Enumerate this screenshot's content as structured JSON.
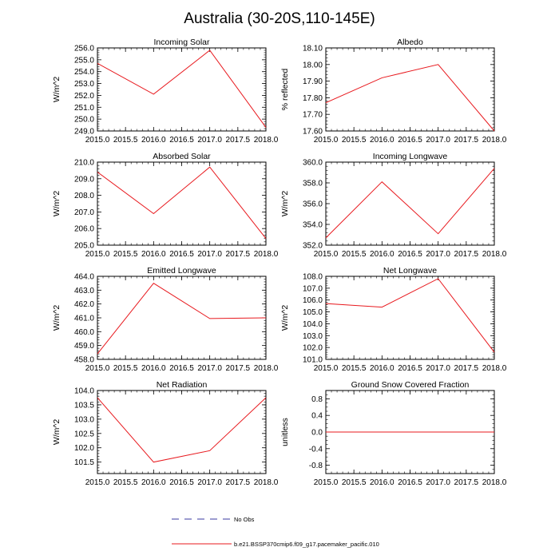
{
  "title": "Australia (30-20S,110-145E)",
  "chart_data": [
    {
      "type": "line",
      "title": "Incoming Solar",
      "ylabel": "W/m^2",
      "x": [
        2015,
        2016,
        2017,
        2018
      ],
      "xticks": [
        "2015.0",
        "2015.5",
        "2016.0",
        "2016.5",
        "2017.0",
        "2017.5",
        "2018.0"
      ],
      "xlim": [
        2015,
        2018
      ],
      "ylim": [
        249,
        256
      ],
      "yticks": [
        "249.0",
        "250.0",
        "251.0",
        "252.0",
        "253.0",
        "254.0",
        "255.0",
        "256.0"
      ],
      "yminor": 0.2,
      "series": [
        {
          "values": [
            254.7,
            252.1,
            255.8,
            249.3
          ]
        }
      ]
    },
    {
      "type": "line",
      "title": "Albedo",
      "ylabel": "% reflected",
      "x": [
        2015,
        2016,
        2017,
        2018
      ],
      "xticks": [
        "2015.0",
        "2015.5",
        "2016.0",
        "2016.5",
        "2017.0",
        "2017.5",
        "2018.0"
      ],
      "xlim": [
        2015,
        2018
      ],
      "ylim": [
        17.6,
        18.1
      ],
      "yticks": [
        "17.60",
        "17.70",
        "17.80",
        "17.90",
        "18.00",
        "18.10"
      ],
      "yminor": 0.02,
      "series": [
        {
          "values": [
            17.77,
            17.92,
            18.0,
            17.6
          ]
        }
      ]
    },
    {
      "type": "line",
      "title": "Absorbed Solar",
      "ylabel": "W/m^2",
      "x": [
        2015,
        2016,
        2017,
        2018
      ],
      "xticks": [
        "2015.0",
        "2015.5",
        "2016.0",
        "2016.5",
        "2017.0",
        "2017.5",
        "2018.0"
      ],
      "xlim": [
        2015,
        2018
      ],
      "ylim": [
        205,
        210
      ],
      "yticks": [
        "205.0",
        "206.0",
        "207.0",
        "208.0",
        "209.0",
        "210.0"
      ],
      "yminor": 0.2,
      "series": [
        {
          "values": [
            209.4,
            206.9,
            209.7,
            205.4
          ]
        }
      ]
    },
    {
      "type": "line",
      "title": "Incoming Longwave",
      "ylabel": "W/m^2",
      "x": [
        2015,
        2016,
        2017,
        2018
      ],
      "xticks": [
        "2015.0",
        "2015.5",
        "2016.0",
        "2016.5",
        "2017.0",
        "2017.5",
        "2018.0"
      ],
      "xlim": [
        2015,
        2018
      ],
      "ylim": [
        352,
        360
      ],
      "yticks": [
        "352.0",
        "354.0",
        "356.0",
        "358.0",
        "360.0"
      ],
      "yminor": 0.4,
      "series": [
        {
          "values": [
            352.7,
            358.1,
            353.1,
            359.4
          ]
        }
      ]
    },
    {
      "type": "line",
      "title": "Emitted Longwave",
      "ylabel": "W/m^2",
      "x": [
        2015,
        2016,
        2017,
        2018
      ],
      "xticks": [
        "2015.0",
        "2015.5",
        "2016.0",
        "2016.5",
        "2017.0",
        "2017.5",
        "2018.0"
      ],
      "xlim": [
        2015,
        2018
      ],
      "ylim": [
        458,
        464
      ],
      "yticks": [
        "458.0",
        "459.0",
        "460.0",
        "461.0",
        "462.0",
        "463.0",
        "464.0"
      ],
      "yminor": 0.2,
      "series": [
        {
          "values": [
            458.4,
            463.5,
            460.95,
            461.0
          ]
        }
      ]
    },
    {
      "type": "line",
      "title": "Net Longwave",
      "ylabel": "W/m^2",
      "x": [
        2015,
        2016,
        2017,
        2018
      ],
      "xticks": [
        "2015.0",
        "2015.5",
        "2016.0",
        "2016.5",
        "2017.0",
        "2017.5",
        "2018.0"
      ],
      "xlim": [
        2015,
        2018
      ],
      "ylim": [
        101,
        108
      ],
      "yticks": [
        "101.0",
        "102.0",
        "103.0",
        "104.0",
        "105.0",
        "106.0",
        "107.0",
        "108.0"
      ],
      "yminor": 0.2,
      "series": [
        {
          "values": [
            105.7,
            105.4,
            107.8,
            101.6
          ]
        }
      ]
    },
    {
      "type": "line",
      "title": "Net Radiation",
      "ylabel": "W/m^2",
      "x": [
        2015,
        2016,
        2017,
        2018
      ],
      "xticks": [
        "2015.0",
        "2015.5",
        "2016.0",
        "2016.5",
        "2017.0",
        "2017.5",
        "2018.0"
      ],
      "xlim": [
        2015,
        2018
      ],
      "ylim": [
        101.1,
        104.0
      ],
      "yticks": [
        "101.5",
        "102.0",
        "102.5",
        "103.0",
        "103.5",
        "104.0"
      ],
      "yminor": 0.1,
      "series": [
        {
          "values": [
            103.75,
            101.5,
            101.9,
            103.75
          ]
        }
      ]
    },
    {
      "type": "line",
      "title": "Ground Snow Covered Fraction",
      "ylabel": "unitless",
      "x": [
        2015,
        2016,
        2017,
        2018
      ],
      "xticks": [
        "2015.0",
        "2015.5",
        "2016.0",
        "2016.5",
        "2017.0",
        "2017.5",
        "2018.0"
      ],
      "xlim": [
        2015,
        2018
      ],
      "ylim": [
        -1.0,
        1.0
      ],
      "yticks": [
        "-0.8",
        "-0.4",
        "0.0",
        "0.4",
        "0.8"
      ],
      "yminor": 0.1,
      "series": [
        {
          "values": [
            0.0,
            0.0,
            0.0,
            0.0
          ]
        }
      ]
    }
  ],
  "legend": [
    {
      "label": "No Obs",
      "color": "#3a3aa0",
      "style": "dashed"
    },
    {
      "label": "b.e21.BSSP370cmip6.f09_g17.pacemaker_pacific.010",
      "color": "#e8191e",
      "style": "solid"
    }
  ],
  "colors": {
    "model_line": "#e8191e",
    "obs_line": "#3a3aa0",
    "axis": "#000000"
  }
}
